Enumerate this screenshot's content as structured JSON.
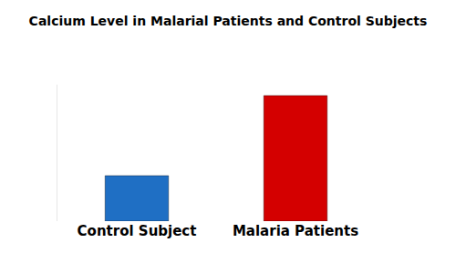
{
  "chart_data": {
    "type": "bar",
    "title": "Calcium Level in Malarial Patients and Control Subjects",
    "categories": [
      "Control Subject",
      "Malaria Patients"
    ],
    "values": [
      50,
      138
    ],
    "colors": [
      "#1f6fc4",
      "#d40000"
    ],
    "ylim": [
      0,
      150
    ],
    "grid": false,
    "tick_labels": "x"
  }
}
